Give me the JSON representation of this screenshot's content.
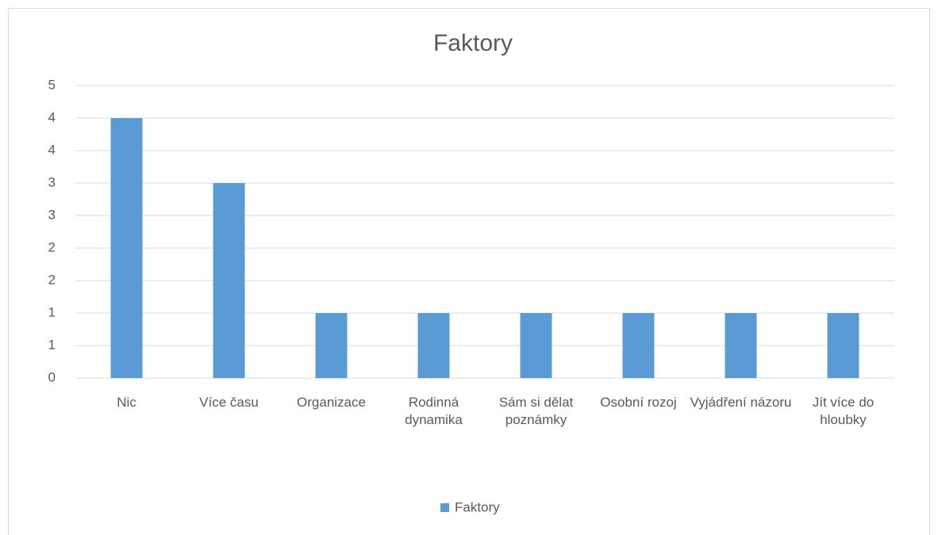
{
  "chart_data": {
    "type": "bar",
    "title": "Faktory",
    "categories": [
      "Nic",
      "Více času",
      "Organizace",
      "Rodinná dynamika",
      "Sám si dělat poznámky",
      "Osobní rozoj",
      "Vyjádření názoru",
      "Jít více do hloubky"
    ],
    "series": [
      {
        "name": "Faktory",
        "color": "#5b9bd5",
        "values": [
          4,
          3,
          1,
          1,
          1,
          1,
          1,
          1
        ]
      }
    ],
    "ylim": [
      0,
      4.5
    ],
    "yticks": [
      0,
      {
        "value": 0.5,
        "label": "1"
      },
      1,
      {
        "value": 1.5,
        "label": "2"
      },
      2,
      {
        "value": 2.5,
        "label": "3"
      },
      3,
      {
        "value": 3.5,
        "label": "4"
      },
      4,
      {
        "value": 4.5,
        "label": "5"
      }
    ],
    "grid": true,
    "legend": "bottom"
  }
}
